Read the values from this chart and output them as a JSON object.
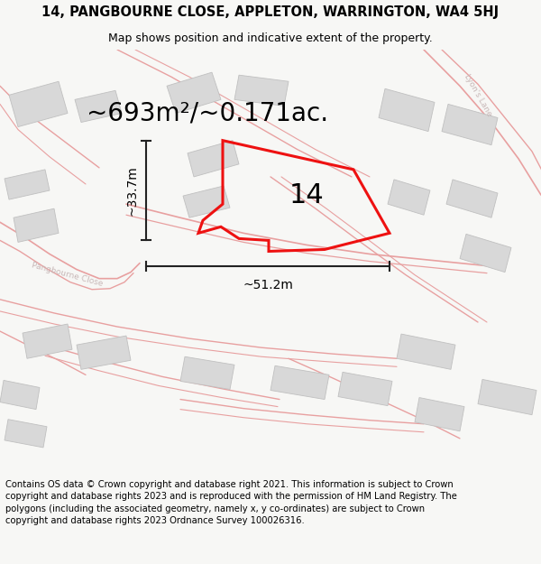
{
  "title_line1": "14, PANGBOURNE CLOSE, APPLETON, WARRINGTON, WA4 5HJ",
  "title_line2": "Map shows position and indicative extent of the property.",
  "area_text": "~693m²/~0.171ac.",
  "label_number": "14",
  "dim_horizontal": "~51.2m",
  "dim_vertical": "~33.7m",
  "footer_text": "Contains OS data © Crown copyright and database right 2021. This information is subject to Crown copyright and database rights 2023 and is reproduced with the permission of HM Land Registry. The polygons (including the associated geometry, namely x, y co-ordinates) are subject to Crown copyright and database rights 2023 Ordnance Survey 100026316.",
  "bg_color": "#f7f7f5",
  "map_bg": "#ffffff",
  "road_color": "#e8a0a0",
  "building_color": "#d8d8d8",
  "building_edge": "#c0c0c0",
  "highlight_color": "#ee1111",
  "dim_color": "#222222",
  "title_fontsize": 10.5,
  "subtitle_fontsize": 9,
  "area_fontsize": 20,
  "label_fontsize": 22,
  "dim_fontsize": 10,
  "footer_fontsize": 7.2,
  "lyons_lane_color": "#c8b8b8",
  "pangbourne_close_color": "#c8b8b8"
}
